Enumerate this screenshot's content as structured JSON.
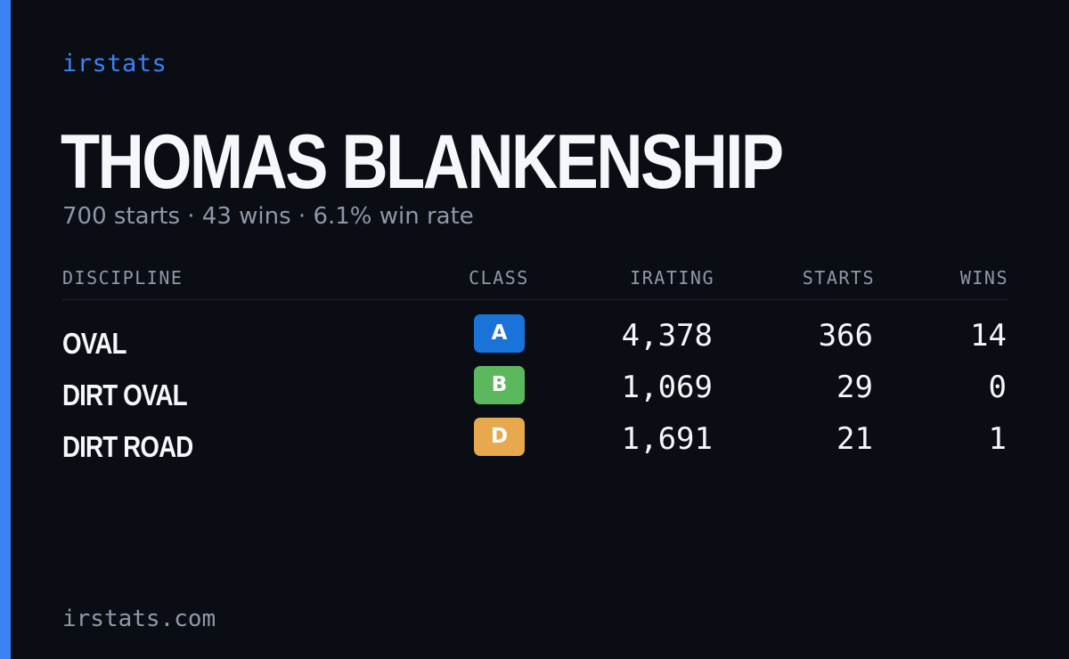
{
  "brand": "irstats",
  "driver": {
    "name": "THOMAS BLANKENSHIP",
    "summary": "700 starts · 43 wins · 6.1% win rate"
  },
  "table": {
    "headers": {
      "discipline": "DISCIPLINE",
      "class": "CLASS",
      "irating": "IRATING",
      "starts": "STARTS",
      "wins": "WINS"
    },
    "rows": [
      {
        "discipline": "OVAL",
        "class": "A",
        "class_color": "#1a73d9",
        "irating": "4,378",
        "starts": "366",
        "wins": "14"
      },
      {
        "discipline": "DIRT OVAL",
        "class": "B",
        "class_color": "#5cb85c",
        "irating": "1,069",
        "starts": "29",
        "wins": "0"
      },
      {
        "discipline": "DIRT ROAD",
        "class": "D",
        "class_color": "#e8a94e",
        "irating": "1,691",
        "starts": "21",
        "wins": "1"
      }
    ]
  },
  "footer": "irstats.com",
  "colors": {
    "accent": "#3b82f6",
    "background": "#0a0d14",
    "muted": "#8f98a8"
  }
}
